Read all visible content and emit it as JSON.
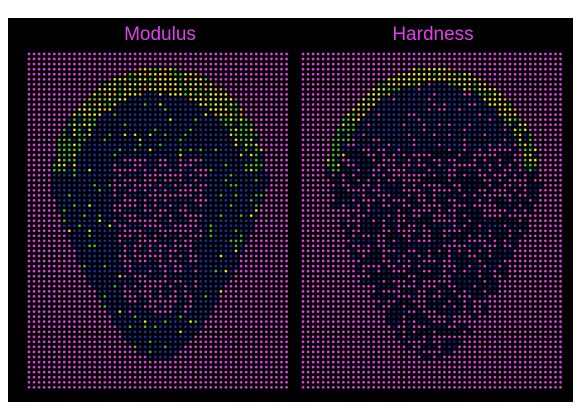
{
  "panels": [
    {
      "title": "Modulus"
    },
    {
      "title": "Hardness"
    }
  ]
}
